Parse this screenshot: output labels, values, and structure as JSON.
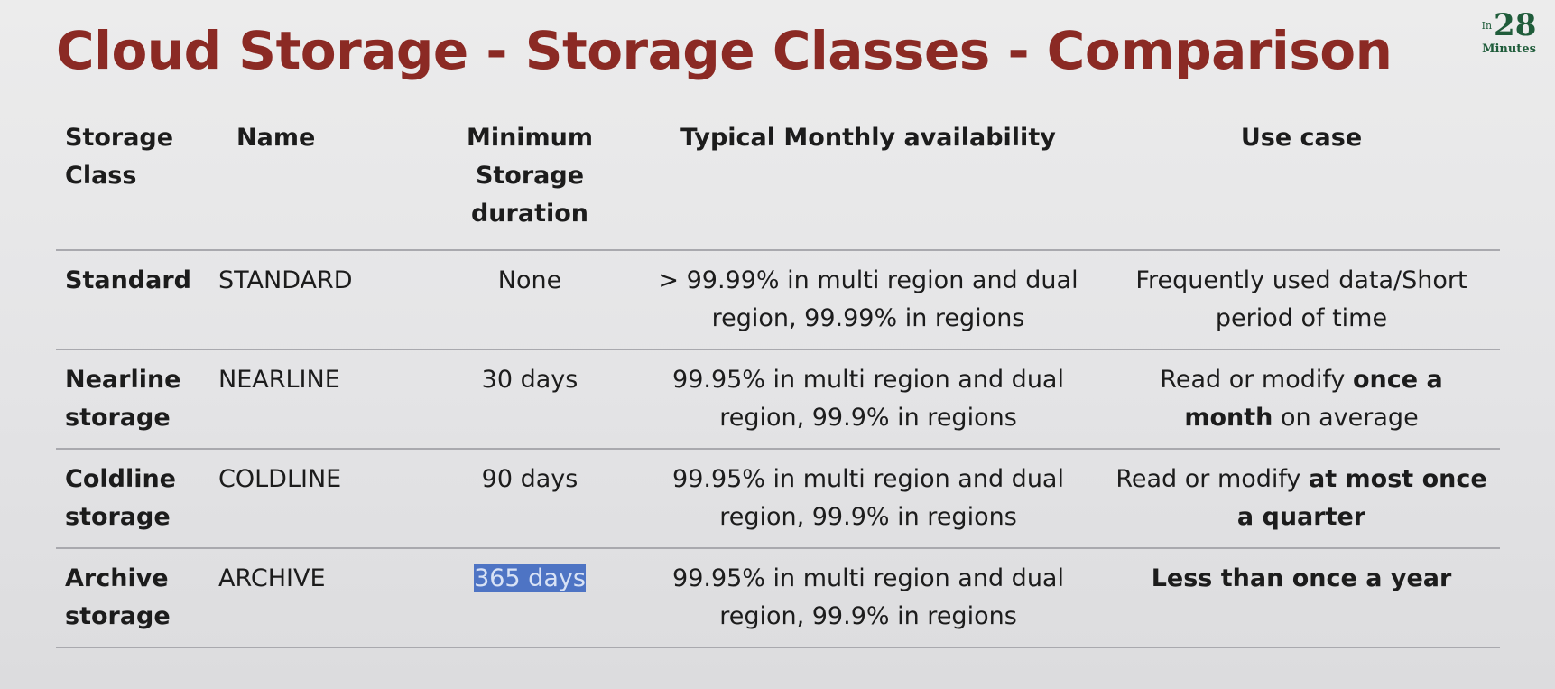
{
  "title": "Cloud Storage - Storage Classes - Comparison",
  "logo": {
    "prefix": "In",
    "number": "28",
    "word": "Minutes"
  },
  "table": {
    "headers": {
      "storage_class": "Storage Class",
      "name": "Name",
      "min_duration": "Minimum Storage duration",
      "availability": "Typical Monthly availability",
      "use_case": "Use case"
    },
    "rows": [
      {
        "storage_class": "Standard",
        "name": "STANDARD",
        "min_duration": "None",
        "availability": "> 99.99% in multi region and dual region, 99.99% in regions",
        "use_case": {
          "pre": "Frequently used data/Short period of time",
          "bold": "",
          "post": ""
        }
      },
      {
        "storage_class": "Nearline storage",
        "name": "NEARLINE",
        "min_duration": "30 days",
        "availability": "99.95% in multi region and dual region, 99.9% in regions",
        "use_case": {
          "pre": "Read or modify ",
          "bold": "once a month",
          "post": " on average"
        }
      },
      {
        "storage_class": "Coldline storage",
        "name": "COLDLINE",
        "min_duration": "90 days",
        "availability": "99.95% in multi region and dual region, 99.9% in regions",
        "use_case": {
          "pre": "Read or modify ",
          "bold": "at most once a quarter",
          "post": ""
        }
      },
      {
        "storage_class": "Archive storage",
        "name": "ARCHIVE",
        "min_duration": "365 days",
        "availability": "99.95% in multi region and dual region, 99.9% in regions",
        "use_case": {
          "pre": "",
          "bold": "Less than once a year",
          "post": ""
        }
      }
    ],
    "highlighted_cell": "365 days",
    "highlight_color": "#4e74c4"
  },
  "colors": {
    "title": "#8b2a24",
    "logo": "#1f5c3a",
    "divider": "#a9a9ae"
  }
}
